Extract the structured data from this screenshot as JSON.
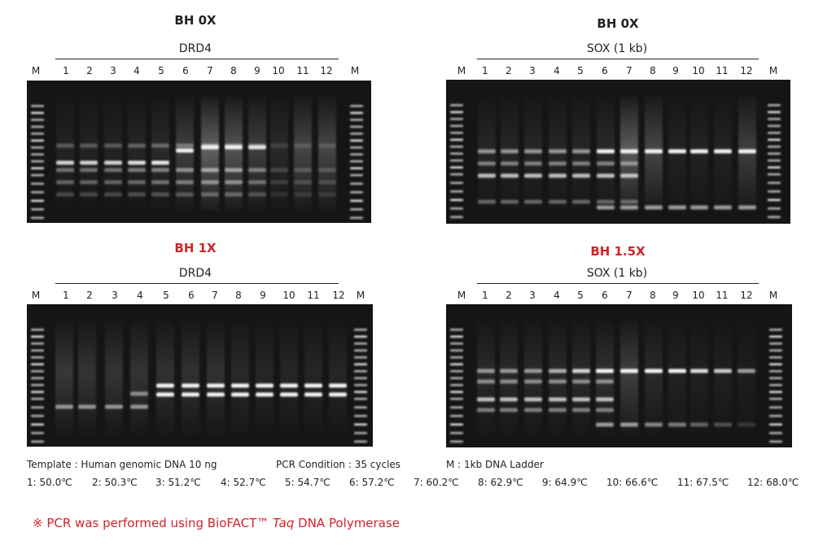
{
  "colors": {
    "accent_red": "#d2232a",
    "gel_bg": "#151515",
    "band": "#f2f2f2"
  },
  "panels": [
    {
      "title": "BH 0X",
      "title_color": "black",
      "target": "DRD4",
      "marker": "M",
      "lanes": [
        "1",
        "2",
        "3",
        "4",
        "5",
        "6",
        "7",
        "8",
        "9",
        "10",
        "11",
        "12"
      ]
    },
    {
      "title": "BH 0X",
      "title_color": "black",
      "target": "SOX (1 kb)",
      "marker": "M",
      "lanes": [
        "1",
        "2",
        "3",
        "4",
        "5",
        "6",
        "7",
        "8",
        "9",
        "10",
        "11",
        "12"
      ]
    },
    {
      "title": "BH 1X",
      "title_color": "red",
      "target": "DRD4",
      "marker": "M",
      "lanes": [
        "1",
        "2",
        "3",
        "4",
        "5",
        "6",
        "7",
        "8",
        "9",
        "10",
        "11",
        "12"
      ]
    },
    {
      "title": "BH 1.5X",
      "title_color": "red",
      "target": "SOX (1 kb)",
      "marker": "M",
      "lanes": [
        "1",
        "2",
        "3",
        "4",
        "5",
        "6",
        "7",
        "8",
        "9",
        "10",
        "11",
        "12"
      ]
    }
  ],
  "conditions": {
    "template": "Template : Human genomic DNA 10 ng",
    "pcr": "PCR Condition : 35 cycles",
    "ladder": "M : 1kb DNA Ladder"
  },
  "temperatures": [
    "1: 50.0℃",
    "2: 50.3℃",
    "3: 51.2℃",
    "4: 52.7℃",
    "5: 54.7℃",
    "6: 57.2℃",
    "7: 60.2℃",
    "8: 62.9℃",
    "9: 64.9℃",
    "10: 66.6℃",
    "11: 67.5℃",
    "12: 68.0℃"
  ],
  "footnote": {
    "prefix": "※ PCR was performed using BioFACT™ ",
    "italic": "Taq",
    "suffix": " DNA  Polymerase"
  }
}
